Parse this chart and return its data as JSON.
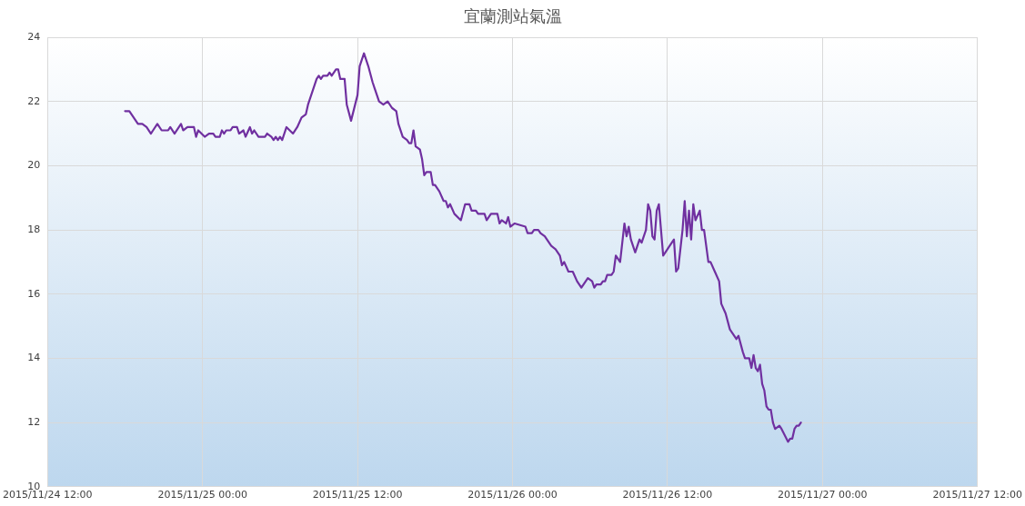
{
  "chart_data": {
    "type": "line",
    "title": "宜蘭測站氣溫",
    "x": [
      "2015-11-24T18:00",
      "2015-11-24T18:20",
      "2015-11-24T19:00",
      "2015-11-24T19:20",
      "2015-11-24T19:40",
      "2015-11-24T20:00",
      "2015-11-24T20:10",
      "2015-11-24T20:30",
      "2015-11-24T20:50",
      "2015-11-24T21:20",
      "2015-11-24T21:30",
      "2015-11-24T21:50",
      "2015-11-24T22:20",
      "2015-11-24T22:30",
      "2015-11-24T22:50",
      "2015-11-24T23:20",
      "2015-11-24T23:30",
      "2015-11-24T23:40",
      "2015-11-25T00:10",
      "2015-11-25T00:30",
      "2015-11-25T00:50",
      "2015-11-25T01:00",
      "2015-11-25T01:20",
      "2015-11-25T01:30",
      "2015-11-25T01:40",
      "2015-11-25T01:50",
      "2015-11-25T02:10",
      "2015-11-25T02:20",
      "2015-11-25T02:40",
      "2015-11-25T02:50",
      "2015-11-25T03:10",
      "2015-11-25T03:20",
      "2015-11-25T03:40",
      "2015-11-25T03:50",
      "2015-11-25T04:00",
      "2015-11-25T04:20",
      "2015-11-25T04:50",
      "2015-11-25T05:00",
      "2015-11-25T05:20",
      "2015-11-25T05:30",
      "2015-11-25T05:40",
      "2015-11-25T05:50",
      "2015-11-25T06:00",
      "2015-11-25T06:10",
      "2015-11-25T06:30",
      "2015-11-25T07:00",
      "2015-11-25T07:20",
      "2015-11-25T07:40",
      "2015-11-25T08:00",
      "2015-11-25T08:10",
      "2015-11-25T08:50",
      "2015-11-25T09:00",
      "2015-11-25T09:10",
      "2015-11-25T09:20",
      "2015-11-25T09:40",
      "2015-11-25T09:50",
      "2015-11-25T10:00",
      "2015-11-25T10:20",
      "2015-11-25T10:30",
      "2015-11-25T10:40",
      "2015-11-25T11:00",
      "2015-11-25T11:10",
      "2015-11-25T11:30",
      "2015-11-25T12:00",
      "2015-11-25T12:10",
      "2015-11-25T12:30",
      "2015-11-25T12:50",
      "2015-11-25T13:10",
      "2015-11-25T13:20",
      "2015-11-25T13:40",
      "2015-11-25T14:00",
      "2015-11-25T14:20",
      "2015-11-25T14:40",
      "2015-11-25T15:00",
      "2015-11-25T15:10",
      "2015-11-25T15:30",
      "2015-11-25T15:50",
      "2015-11-25T16:00",
      "2015-11-25T16:10",
      "2015-11-25T16:20",
      "2015-11-25T16:30",
      "2015-11-25T16:50",
      "2015-11-25T17:00",
      "2015-11-25T17:10",
      "2015-11-25T17:20",
      "2015-11-25T17:40",
      "2015-11-25T17:50",
      "2015-11-25T18:00",
      "2015-11-25T18:20",
      "2015-11-25T18:40",
      "2015-11-25T18:50",
      "2015-11-25T19:00",
      "2015-11-25T19:10",
      "2015-11-25T19:30",
      "2015-11-25T20:00",
      "2015-11-25T20:20",
      "2015-11-25T20:40",
      "2015-11-25T20:50",
      "2015-11-25T21:10",
      "2015-11-25T21:20",
      "2015-11-25T21:50",
      "2015-11-25T22:00",
      "2015-11-25T22:20",
      "2015-11-25T22:50",
      "2015-11-25T23:00",
      "2015-11-25T23:10",
      "2015-11-25T23:30",
      "2015-11-25T23:40",
      "2015-11-25T23:50",
      "2015-11-26T00:10",
      "2015-11-26T01:00",
      "2015-11-26T01:10",
      "2015-11-26T01:30",
      "2015-11-26T01:40",
      "2015-11-26T02:00",
      "2015-11-26T02:10",
      "2015-11-26T02:30",
      "2015-11-26T02:40",
      "2015-11-26T03:00",
      "2015-11-26T03:20",
      "2015-11-26T03:40",
      "2015-11-26T03:50",
      "2015-11-26T04:00",
      "2015-11-26T04:20",
      "2015-11-26T04:40",
      "2015-11-26T05:00",
      "2015-11-26T05:20",
      "2015-11-26T05:50",
      "2015-11-26T06:10",
      "2015-11-26T06:20",
      "2015-11-26T06:30",
      "2015-11-26T06:50",
      "2015-11-26T07:00",
      "2015-11-26T07:10",
      "2015-11-26T07:20",
      "2015-11-26T07:40",
      "2015-11-26T07:50",
      "2015-11-26T08:00",
      "2015-11-26T08:20",
      "2015-11-26T08:40",
      "2015-11-26T08:50",
      "2015-11-26T09:00",
      "2015-11-26T09:10",
      "2015-11-26T09:30",
      "2015-11-26T09:50",
      "2015-11-26T10:00",
      "2015-11-26T10:20",
      "2015-11-26T10:30",
      "2015-11-26T10:40",
      "2015-11-26T10:50",
      "2015-11-26T11:00",
      "2015-11-26T11:10",
      "2015-11-26T11:20",
      "2015-11-26T11:40",
      "2015-11-26T11:50",
      "2015-11-26T12:10",
      "2015-11-26T12:30",
      "2015-11-26T12:40",
      "2015-11-26T12:50",
      "2015-11-26T13:10",
      "2015-11-26T13:20",
      "2015-11-26T13:30",
      "2015-11-26T13:40",
      "2015-11-26T13:50",
      "2015-11-26T14:00",
      "2015-11-26T14:10",
      "2015-11-26T14:30",
      "2015-11-26T14:40",
      "2015-11-26T14:50",
      "2015-11-26T15:10",
      "2015-11-26T15:20",
      "2015-11-26T15:40",
      "2015-11-26T16:00",
      "2015-11-26T16:10",
      "2015-11-26T16:30",
      "2015-11-26T16:50",
      "2015-11-26T17:00",
      "2015-11-26T17:20",
      "2015-11-26T17:30",
      "2015-11-26T17:50",
      "2015-11-26T18:00",
      "2015-11-26T18:20",
      "2015-11-26T18:30",
      "2015-11-26T18:40",
      "2015-11-26T18:50",
      "2015-11-26T19:00",
      "2015-11-26T19:10",
      "2015-11-26T19:20",
      "2015-11-26T19:30",
      "2015-11-26T19:40",
      "2015-11-26T19:50",
      "2015-11-26T20:00",
      "2015-11-26T20:10",
      "2015-11-26T20:20",
      "2015-11-26T20:40",
      "2015-11-26T20:50",
      "2015-11-26T21:20",
      "2015-11-26T21:30",
      "2015-11-26T21:40",
      "2015-11-26T21:50",
      "2015-11-26T22:00",
      "2015-11-26T22:10",
      "2015-11-26T22:20"
    ],
    "series": [
      {
        "color": "#7030a0",
        "values": [
          21.7,
          21.7,
          21.3,
          21.3,
          21.2,
          21.0,
          21.1,
          21.3,
          21.1,
          21.1,
          21.2,
          21.0,
          21.3,
          21.1,
          21.2,
          21.2,
          20.9,
          21.1,
          20.9,
          21.0,
          21.0,
          20.9,
          20.9,
          21.1,
          21.0,
          21.1,
          21.1,
          21.2,
          21.2,
          21.0,
          21.1,
          20.9,
          21.2,
          21.0,
          21.1,
          20.9,
          20.9,
          21.0,
          20.9,
          20.8,
          20.9,
          20.8,
          20.9,
          20.8,
          21.2,
          21.0,
          21.2,
          21.5,
          21.6,
          21.9,
          22.7,
          22.8,
          22.7,
          22.8,
          22.8,
          22.9,
          22.8,
          23.0,
          23.0,
          22.7,
          22.7,
          21.9,
          21.4,
          22.2,
          23.1,
          23.5,
          23.1,
          22.6,
          22.4,
          22.0,
          21.9,
          22.0,
          21.8,
          21.7,
          21.3,
          20.9,
          20.8,
          20.7,
          20.7,
          21.1,
          20.6,
          20.5,
          20.2,
          19.7,
          19.8,
          19.8,
          19.4,
          19.4,
          19.2,
          18.9,
          18.9,
          18.7,
          18.8,
          18.5,
          18.3,
          18.8,
          18.8,
          18.6,
          18.6,
          18.5,
          18.5,
          18.3,
          18.5,
          18.5,
          18.2,
          18.3,
          18.2,
          18.4,
          18.1,
          18.2,
          18.1,
          17.9,
          17.9,
          18.0,
          18.0,
          17.9,
          17.8,
          17.7,
          17.5,
          17.4,
          17.2,
          16.9,
          17.0,
          16.7,
          16.7,
          16.4,
          16.2,
          16.5,
          16.4,
          16.2,
          16.3,
          16.3,
          16.4,
          16.4,
          16.6,
          16.6,
          16.7,
          17.2,
          17.0,
          18.2,
          17.8,
          18.1,
          17.7,
          17.3,
          17.7,
          17.6,
          18.0,
          18.8,
          18.6,
          17.8,
          17.7,
          18.6,
          18.8,
          17.2,
          17.3,
          17.5,
          17.7,
          16.7,
          16.8,
          18.0,
          18.9,
          17.8,
          18.6,
          17.7,
          18.8,
          18.3,
          18.6,
          18.0,
          18.0,
          17.0,
          17.0,
          16.7,
          16.4,
          15.7,
          15.4,
          14.9,
          14.8,
          14.6,
          14.7,
          14.2,
          14.0,
          14.0,
          13.7,
          14.1,
          13.7,
          13.6,
          13.8,
          13.2,
          13.0,
          12.5,
          12.4,
          12.4,
          12.0,
          11.8,
          11.9,
          11.8,
          11.4,
          11.5,
          11.5,
          11.8,
          11.9,
          11.9,
          12.0
        ]
      }
    ],
    "xlim": [
      "2015-11-24T12:00",
      "2015-11-27T12:00"
    ],
    "xticks": [
      {
        "value": "2015-11-24T12:00",
        "label": "2015/11/24 12:00"
      },
      {
        "value": "2015-11-25T00:00",
        "label": "2015/11/25 00:00"
      },
      {
        "value": "2015-11-25T12:00",
        "label": "2015/11/25 12:00"
      },
      {
        "value": "2015-11-26T00:00",
        "label": "2015/11/26 00:00"
      },
      {
        "value": "2015-11-26T12:00",
        "label": "2015/11/26 12:00"
      },
      {
        "value": "2015-11-27T00:00",
        "label": "2015/11/27 00:00"
      },
      {
        "value": "2015-11-27T12:00",
        "label": "2015/11/27 12:00"
      }
    ],
    "ylim": [
      10,
      24
    ],
    "yticks": [
      10,
      12,
      14,
      16,
      18,
      20,
      22,
      24
    ],
    "grid": true,
    "legend": false,
    "marker": "none",
    "line_style": "solid"
  }
}
